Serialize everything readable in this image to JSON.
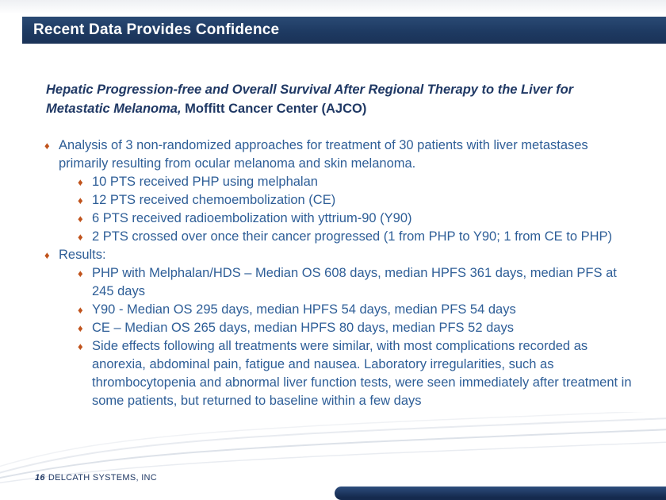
{
  "header": {
    "title": "Recent Data Provides Confidence"
  },
  "study_title": {
    "italic_part": "Hepatic Progression-free and Overall Survival After Regional Therapy to the Liver for Metastatic Melanoma,",
    "regular_part": " Moffitt Cancer Center (AJCO)"
  },
  "bullets": [
    {
      "level": 1,
      "text": "Analysis of 3 non-randomized approaches for treatment of 30 patients with liver metastases primarily resulting from ocular melanoma and skin melanoma."
    },
    {
      "level": 2,
      "text": "10 PTS received PHP using melphalan"
    },
    {
      "level": 2,
      "text": "12 PTS received chemoembolization (CE)"
    },
    {
      "level": 2,
      "text": "6 PTS received radioembolization with yttrium-90 (Y90)"
    },
    {
      "level": 2,
      "text": "2 PTS crossed over once their cancer progressed (1 from PHP to Y90; 1 from CE to PHP)"
    },
    {
      "level": 1,
      "text": "Results:"
    },
    {
      "level": 2,
      "text": "PHP with Melphalan/HDS – Median OS 608 days, median HPFS 361 days, median PFS at 245 days"
    },
    {
      "level": 2,
      "text": "Y90 - Median OS 295 days, median HPFS 54 days, median PFS 54 days"
    },
    {
      "level": 2,
      "text": "CE – Median OS 265 days, median HPFS 80 days, median PFS 52 days"
    },
    {
      "level": 2,
      "text": "Side effects following all treatments were similar, with most complications recorded as anorexia, abdominal pain, fatigue and nausea. Laboratory irregularities, such as thrombocytopenia and abnormal liver function tests, were seen immediately after treatment in some patients, but returned to baseline within a few days"
    }
  ],
  "footer": {
    "page_number": "16",
    "company": "DELCATH SYSTEMS, INC"
  },
  "icons": {
    "bullet": "♦"
  },
  "colors": {
    "header_bar": "#1e3a62",
    "title_text": "#1f3864",
    "body_text": "#2e5e97",
    "bullet": "#c0531c",
    "bottom_bar_dark": "#152a4e",
    "bottom_bar_light": "#2d4d7d"
  }
}
